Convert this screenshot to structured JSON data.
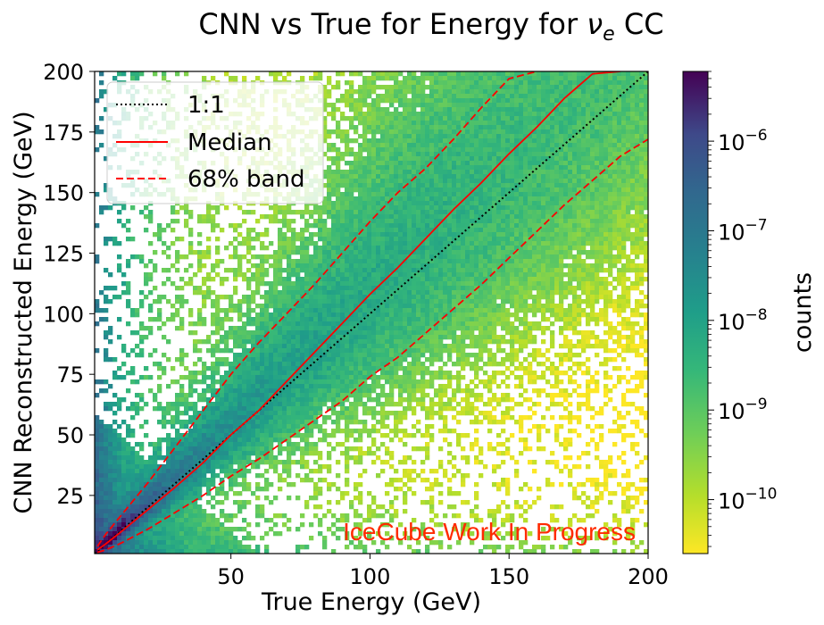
{
  "chart_data": {
    "type": "heatmap",
    "title_main": "CNN vs True for Energy  for ",
    "title_nu": "ν",
    "title_sub": "e",
    "title_tail": " CC",
    "xlabel": "True Energy (GeV)",
    "ylabel": "CNN Reconstructed Energy (GeV)",
    "xlim": [
      1,
      200
    ],
    "ylim": [
      1,
      200
    ],
    "xticks": [
      50,
      100,
      150,
      200
    ],
    "yticks": [
      25,
      50,
      75,
      100,
      125,
      150,
      175,
      200
    ],
    "colorbar": {
      "label": "counts",
      "scale": "log",
      "range": [
        2.5e-11,
        6e-06
      ],
      "ticks": [
        {
          "value": 1e-10,
          "base": "10",
          "exp": "−10"
        },
        {
          "value": 1e-09,
          "base": "10",
          "exp": "−9"
        },
        {
          "value": 1e-08,
          "base": "10",
          "exp": "−8"
        },
        {
          "value": 1e-07,
          "base": "10",
          "exp": "−7"
        },
        {
          "value": 1e-06,
          "base": "10",
          "exp": "−6"
        }
      ],
      "colormap": "viridis_r"
    },
    "legend": {
      "placement": "top-left",
      "entries": [
        {
          "label": "1:1",
          "style": "dotted",
          "color": "#000000"
        },
        {
          "label": "Median",
          "style": "solid",
          "color": "#ff0000"
        },
        {
          "label": "68% band",
          "style": "dashed",
          "color": "#ff0000"
        }
      ]
    },
    "series": [
      {
        "name": "1:1",
        "x": [
          1,
          200
        ],
        "y": [
          1,
          200
        ]
      },
      {
        "name": "Median",
        "x": [
          2,
          5,
          10,
          20,
          30,
          40,
          50,
          60,
          70,
          80,
          90,
          100,
          110,
          120,
          130,
          140,
          150,
          160,
          170,
          180,
          190
        ],
        "y": [
          2.5,
          5,
          9.5,
          19,
          28.5,
          38.5,
          50,
          60,
          72,
          84,
          96,
          108,
          119,
          131,
          143,
          154,
          166,
          177,
          189,
          199,
          200
        ]
      },
      {
        "name": "68% band",
        "x": [
          2,
          5,
          10,
          20,
          30,
          40,
          50,
          60,
          70,
          80,
          90,
          100,
          110,
          120,
          130,
          140,
          150,
          160
        ],
        "y": [
          4,
          9,
          16,
          30,
          45,
          60,
          75,
          88,
          100,
          112,
          125,
          138,
          150,
          160,
          172,
          185,
          197,
          200
        ]
      },
      {
        "name": "68% band",
        "x": [
          2,
          5,
          10,
          20,
          30,
          40,
          50,
          60,
          70,
          80,
          90,
          100,
          110,
          120,
          130,
          140,
          150,
          160,
          170,
          180,
          190,
          200
        ],
        "y": [
          1.5,
          2.5,
          5,
          11,
          18,
          25,
          33,
          40,
          48,
          56,
          64,
          74,
          82,
          92,
          102,
          112,
          123,
          134,
          145,
          155,
          165,
          172
        ]
      }
    ],
    "annotation": {
      "text": "IceCube Work In Progress",
      "color": "#ff2a00"
    }
  }
}
